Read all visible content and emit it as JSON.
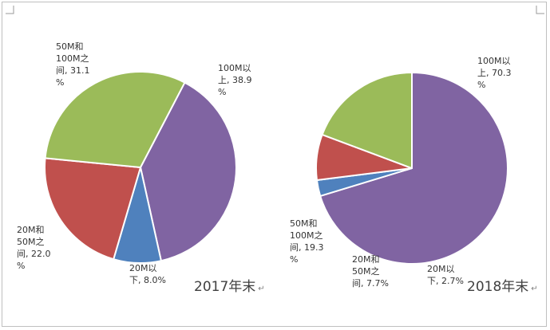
{
  "chart_data": [
    {
      "type": "pie",
      "title": "2017年末",
      "unit": "%",
      "categories": [
        "100M以上",
        "20M以下",
        "20M和50M之间",
        "50M和100M之间"
      ],
      "values": [
        38.9,
        8.0,
        22.0,
        31.1
      ],
      "colors": [
        "#8064a2",
        "#4f81bd",
        "#c0504d",
        "#9bbb59"
      ],
      "labels": [
        {
          "lines": [
            "100M以",
            "上, 38.9",
            "%"
          ]
        },
        {
          "lines": [
            "20M以",
            "下, 8.0%"
          ]
        },
        {
          "lines": [
            "20M和",
            "50M之",
            "间, 22.0",
            "%"
          ]
        },
        {
          "lines": [
            "50M和",
            "100M之",
            "间, 31.1",
            "%"
          ]
        }
      ],
      "return_mark": "↵"
    },
    {
      "type": "pie",
      "title": "2018年末",
      "unit": "%",
      "categories": [
        "100M以上",
        "20M以下",
        "20M和50M之间",
        "50M和100M之间"
      ],
      "values": [
        70.3,
        2.7,
        7.7,
        19.3
      ],
      "colors": [
        "#8064a2",
        "#4f81bd",
        "#c0504d",
        "#9bbb59"
      ],
      "labels": [
        {
          "lines": [
            "100M以",
            "上, 70.3",
            "%"
          ]
        },
        {
          "lines": [
            "20M以",
            "下, 2.7%"
          ]
        },
        {
          "lines": [
            "20M和",
            "50M之",
            "间, 7.7%"
          ]
        },
        {
          "lines": [
            "50M和",
            "100M之",
            "间, 19.3",
            "%"
          ]
        }
      ],
      "return_mark": "↵"
    }
  ]
}
